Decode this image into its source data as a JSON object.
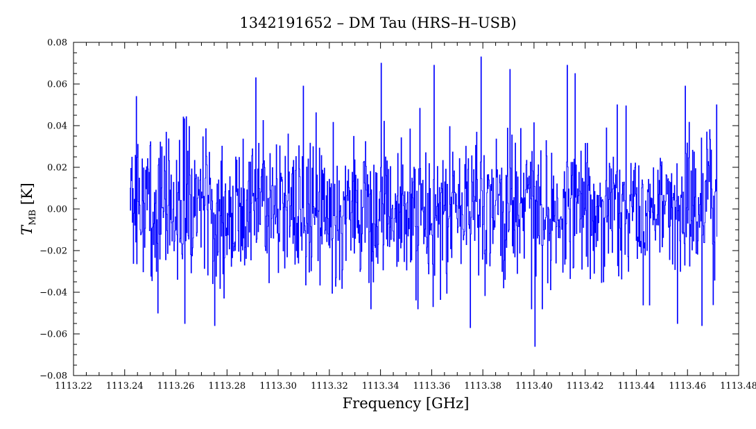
{
  "chart_data": {
    "type": "line",
    "title": "1342191652 – DM Tau (HRS–H–USB)",
    "xlabel": "Frequency [GHz]",
    "ylabel_main": "T",
    "ylabel_sub": "MB",
    "ylabel_unit": " [K]",
    "xlim": [
      1113.22,
      1113.48
    ],
    "ylim": [
      -0.08,
      0.08
    ],
    "xticks": [
      1113.22,
      1113.24,
      1113.26,
      1113.28,
      1113.3,
      1113.32,
      1113.34,
      1113.36,
      1113.38,
      1113.4,
      1113.42,
      1113.44,
      1113.46,
      1113.48
    ],
    "xtick_labels": [
      "1113.22",
      "1113.24",
      "1113.26",
      "1113.28",
      "1113.30",
      "1113.32",
      "1113.34",
      "1113.36",
      "1113.38",
      "1113.40",
      "1113.42",
      "1113.44",
      "1113.46",
      "1113.48"
    ],
    "yticks": [
      -0.08,
      -0.06,
      -0.04,
      -0.02,
      0.0,
      0.02,
      0.04,
      0.06,
      0.08
    ],
    "ytick_labels": [
      "−0.08",
      "−0.06",
      "−0.04",
      "−0.02",
      "0.00",
      "0.02",
      "0.04",
      "0.06",
      "0.08"
    ],
    "grid": false,
    "series": [
      {
        "color": "#0000ff",
        "x_start": 1113.242,
        "x_end": 1113.4715,
        "noise_rms": 0.02,
        "features": [
          {
            "x": 1113.2445,
            "y": 0.054
          },
          {
            "x": 1113.253,
            "y": -0.05
          },
          {
            "x": 1113.2635,
            "y": -0.055
          },
          {
            "x": 1113.2752,
            "y": -0.056
          },
          {
            "x": 1113.2912,
            "y": 0.063
          },
          {
            "x": 1113.3098,
            "y": 0.059
          },
          {
            "x": 1113.3402,
            "y": 0.07
          },
          {
            "x": 1113.3608,
            "y": 0.069
          },
          {
            "x": 1113.375,
            "y": -0.057
          },
          {
            "x": 1113.3792,
            "y": 0.073
          },
          {
            "x": 1113.3905,
            "y": 0.067
          },
          {
            "x": 1113.4002,
            "y": -0.066
          },
          {
            "x": 1113.413,
            "y": 0.069
          },
          {
            "x": 1113.416,
            "y": 0.065
          },
          {
            "x": 1113.456,
            "y": -0.055
          },
          {
            "x": 1113.459,
            "y": 0.059
          },
          {
            "x": 1113.4655,
            "y": -0.056
          },
          {
            "x": 1113.47,
            "y": -0.046
          }
        ]
      }
    ]
  }
}
